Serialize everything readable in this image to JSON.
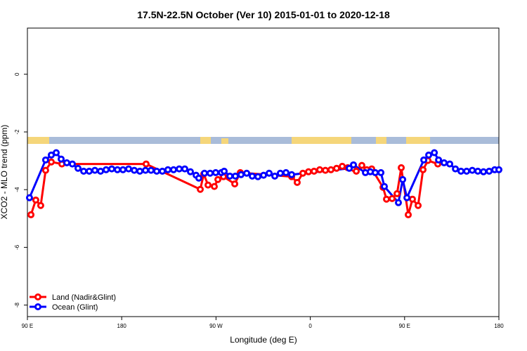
{
  "chart_data": {
    "type": "line",
    "title": "17.5N-22.5N October (Ver 10)   2015-01-01 to 2020-12-18",
    "xlabel": "Longitude (deg E)",
    "ylabel": "XCO2 - MLO trend (ppm)",
    "xlim": [
      90,
      540
    ],
    "ylim": [
      -8.4,
      1.6
    ],
    "xticks": [
      {
        "value": 90,
        "label": "90 E"
      },
      180,
      {
        "value": 270,
        "label": "90 W"
      },
      {
        "value": 360,
        "label": "0"
      },
      {
        "value": 450,
        "label": "90 E"
      },
      {
        "value": 540,
        "label": "180"
      }
    ],
    "yticks": [
      0,
      -2,
      -4,
      -6,
      -8
    ],
    "legend": "bottom-left",
    "series": [
      {
        "name": "Land (Nadir&Glint)",
        "color": "#ff0000",
        "x": [
          93.4,
          98,
          102.7,
          107.4,
          112.8,
          122.9,
          203.3,
          255,
          258.3,
          262.4,
          268.4,
          271.8,
          277.1,
          287.9,
          293.2,
          342.2,
          347.5,
          352.9,
          358.3,
          363.6,
          369,
          374.4,
          379.7,
          385.1,
          390.5,
          395.8,
          401.2,
          403.9,
          409.2,
          413.9,
          418.6,
          429.4,
          432.7,
          438.1,
          442.8,
          446.8,
          453.5,
          457.5,
          462.9,
          467.6,
          472.3,
          481.7
        ],
        "values": [
          -4.87,
          -4.36,
          -4.55,
          -3.33,
          -3.04,
          -3.11,
          -3.11,
          -3.99,
          -3.46,
          -3.84,
          -3.89,
          -3.65,
          -3.55,
          -3.8,
          -3.41,
          -3.55,
          -3.75,
          -3.43,
          -3.38,
          -3.36,
          -3.31,
          -3.33,
          -3.31,
          -3.26,
          -3.19,
          -3.24,
          -3.26,
          -3.36,
          -3.16,
          -3.31,
          -3.28,
          -3.92,
          -4.33,
          -4.31,
          -4.14,
          -3.24,
          -4.87,
          -4.33,
          -4.55,
          -3.31,
          -2.99,
          -3.11
        ]
      },
      {
        "name": "Ocean (Glint)",
        "color": "#0000ff",
        "x": [
          92,
          107.4,
          112.8,
          117.5,
          122.2,
          127.6,
          132.9,
          138.3,
          143.7,
          149,
          154.4,
          159.8,
          165.1,
          170.5,
          175.9,
          181.2,
          186.6,
          192,
          197.3,
          202.7,
          208,
          213.4,
          218.8,
          224.1,
          229.5,
          234.9,
          240.2,
          245.6,
          251,
          253.6,
          259,
          264.4,
          269.7,
          275.1,
          277.8,
          283.2,
          288.5,
          293.9,
          299.3,
          304.6,
          310,
          315.4,
          320.7,
          326.1,
          331.4,
          336.8,
          342.2,
          397.2,
          401.2,
          412.6,
          417.3,
          422,
          427.4,
          430.7,
          444.1,
          448.2,
          452.2,
          468.3,
          473,
          478.4,
          482.4,
          487.7,
          493.1,
          498.5,
          503.8,
          509.2,
          514.6,
          519.9,
          525.3,
          530.7,
          536,
          540
        ],
        "values": [
          -4.28,
          -2.97,
          -2.8,
          -2.72,
          -2.94,
          -3.07,
          -3.11,
          -3.26,
          -3.36,
          -3.36,
          -3.33,
          -3.36,
          -3.31,
          -3.28,
          -3.31,
          -3.31,
          -3.28,
          -3.33,
          -3.36,
          -3.33,
          -3.33,
          -3.36,
          -3.36,
          -3.31,
          -3.31,
          -3.28,
          -3.28,
          -3.38,
          -3.5,
          -3.6,
          -3.43,
          -3.43,
          -3.41,
          -3.41,
          -3.36,
          -3.53,
          -3.53,
          -3.48,
          -3.43,
          -3.53,
          -3.55,
          -3.5,
          -3.43,
          -3.53,
          -3.43,
          -3.41,
          -3.48,
          -3.26,
          -3.14,
          -3.41,
          -3.38,
          -3.41,
          -3.41,
          -3.89,
          -4.45,
          -3.65,
          -4.28,
          -2.97,
          -2.8,
          -2.72,
          -2.97,
          -3.07,
          -3.11,
          -3.28,
          -3.36,
          -3.36,
          -3.33,
          -3.36,
          -3.38,
          -3.36,
          -3.31,
          -3.31
        ]
      }
    ]
  }
}
